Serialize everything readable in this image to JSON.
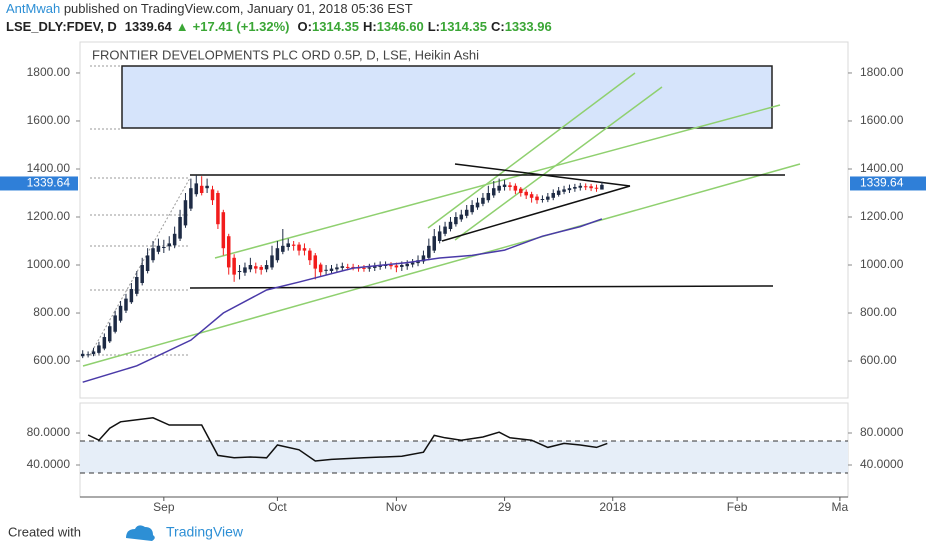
{
  "header": {
    "author": "AntMwah",
    "published": " published on TradingView.com, January 01, 2018 05:36 EST"
  },
  "chart_data": {
    "type": "candlestick",
    "symbol": "LSE_DLY:FDEV, D",
    "last": "1339.64",
    "change_arrow": "▲",
    "change": "+17.41 (+1.32%)",
    "ohlc_legend": [
      {
        "label": "O:",
        "value": "1314.35"
      },
      {
        "label": "H:",
        "value": "1346.60"
      },
      {
        "label": "L:",
        "value": "1314.35"
      },
      {
        "label": "C:",
        "value": "1333.96"
      }
    ],
    "title": "FRONTIER DEVELOPMENTS PLC ORD 0.5P, D, LSE, Heikin Ashi",
    "xlim": [
      -0.5,
      141.5
    ],
    "xticks": [
      {
        "value": 15,
        "label": "Sep"
      },
      {
        "value": 36,
        "label": "Oct"
      },
      {
        "value": 58,
        "label": "Nov"
      },
      {
        "value": 78,
        "label": "29"
      },
      {
        "value": 98,
        "label": "2018"
      },
      {
        "value": 121,
        "label": "Feb"
      },
      {
        "value": 140,
        "label": "Ma"
      }
    ],
    "ylim": [
      446,
      1929
    ],
    "yticks": [
      {
        "value": 600,
        "label": "600.00"
      },
      {
        "value": 800,
        "label": "800.00"
      },
      {
        "value": 1000,
        "label": "1000.00"
      },
      {
        "value": 1200,
        "label": "1200.00"
      },
      {
        "value": 1400,
        "label": "1400.00"
      },
      {
        "value": 1600,
        "label": "1600.00"
      },
      {
        "value": 1800,
        "label": "1800.00"
      }
    ],
    "grid": false,
    "up_color": "#1e2b45",
    "down_color": "#f21c1c",
    "open": [
      620,
      625,
      629,
      634,
      652,
      682,
      722,
      768,
      810,
      845,
      880,
      925,
      975,
      1020,
      1055,
      1075,
      1078,
      1082,
      1110,
      1165,
      1235,
      1295,
      1330,
      1320,
      1315,
      1300,
      1220,
      1120,
      1030,
      975,
      968,
      982,
      995,
      992,
      982,
      990,
      1020,
      1055,
      1075,
      1085,
      1085,
      1070,
      1060,
      1040,
      1002,
      978,
      975,
      982,
      988,
      992,
      992,
      990,
      988,
      985,
      988,
      992,
      998,
      1000,
      998,
      992,
      995,
      1002,
      1008,
      1015,
      1030,
      1060,
      1100,
      1130,
      1150,
      1170,
      1190,
      1205,
      1220,
      1240,
      1255,
      1270,
      1290,
      1310,
      1325,
      1332,
      1330,
      1318,
      1305,
      1295,
      1285,
      1275,
      1272,
      1280,
      1292,
      1305,
      1312,
      1318,
      1322,
      1328,
      1328,
      1322,
      1314.35
    ],
    "high": [
      645,
      640,
      655,
      680,
      715,
      760,
      810,
      850,
      880,
      925,
      975,
      1030,
      1070,
      1100,
      1110,
      1105,
      1120,
      1160,
      1230,
      1300,
      1360,
      1375,
      1370,
      1360,
      1330,
      1310,
      1230,
      1130,
      1045,
      1000,
      1010,
      1030,
      1010,
      1000,
      1020,
      1080,
      1100,
      1150,
      1110,
      1100,
      1095,
      1090,
      1070,
      1050,
      1010,
      1000,
      1000,
      1005,
      1010,
      1005,
      1005,
      1000,
      1000,
      1005,
      1010,
      1015,
      1015,
      1012,
      1010,
      1015,
      1020,
      1025,
      1040,
      1060,
      1110,
      1150,
      1165,
      1180,
      1200,
      1220,
      1230,
      1250,
      1270,
      1280,
      1300,
      1330,
      1350,
      1360,
      1355,
      1345,
      1340,
      1325,
      1315,
      1305,
      1295,
      1290,
      1300,
      1315,
      1325,
      1330,
      1335,
      1338,
      1342,
      1340,
      1338,
      1335,
      1346.6
    ],
    "low": [
      612,
      615,
      620,
      628,
      645,
      675,
      715,
      760,
      800,
      838,
      870,
      915,
      965,
      1010,
      1045,
      1050,
      1060,
      1070,
      1100,
      1155,
      1225,
      1285,
      1290,
      1300,
      1250,
      1150,
      1040,
      960,
      930,
      940,
      955,
      970,
      965,
      960,
      970,
      980,
      1010,
      1045,
      1060,
      1060,
      1040,
      1040,
      1000,
      940,
      950,
      960,
      965,
      970,
      975,
      978,
      978,
      972,
      972,
      972,
      975,
      980,
      985,
      982,
      970,
      975,
      980,
      990,
      995,
      1005,
      1020,
      1050,
      1090,
      1120,
      1140,
      1160,
      1180,
      1195,
      1210,
      1230,
      1245,
      1260,
      1280,
      1300,
      1310,
      1310,
      1295,
      1285,
      1275,
      1260,
      1255,
      1260,
      1262,
      1270,
      1285,
      1295,
      1300,
      1305,
      1310,
      1312,
      1308,
      1305,
      1314.35
    ],
    "close": [
      630,
      628,
      640,
      665,
      700,
      745,
      790,
      830,
      860,
      900,
      950,
      1000,
      1040,
      1070,
      1080,
      1075,
      1090,
      1130,
      1200,
      1270,
      1320,
      1340,
      1300,
      1330,
      1270,
      1170,
      1070,
      990,
      960,
      975,
      990,
      1000,
      985,
      980,
      1000,
      1040,
      1070,
      1080,
      1090,
      1080,
      1060,
      1060,
      1020,
      985,
      970,
      980,
      985,
      990,
      995,
      990,
      990,
      985,
      985,
      990,
      995,
      1000,
      1000,
      995,
      990,
      1000,
      1005,
      1010,
      1020,
      1040,
      1080,
      1120,
      1140,
      1160,
      1180,
      1200,
      1210,
      1230,
      1250,
      1260,
      1280,
      1300,
      1320,
      1330,
      1335,
      1325,
      1310,
      1300,
      1290,
      1280,
      1270,
      1275,
      1285,
      1300,
      1310,
      1315,
      1320,
      1325,
      1330,
      1325,
      1320,
      1318,
      1333.96
    ],
    "moving_average": {
      "color": "#4a3aa8",
      "x": [
        0,
        10,
        20,
        26,
        34,
        40,
        50,
        60,
        66,
        72,
        78,
        85,
        92,
        96
      ],
      "values": [
        512,
        580,
        687,
        800,
        896,
        929,
        987,
        1010,
        1029,
        1040,
        1062,
        1120,
        1160,
        1192
      ]
    },
    "price_tag": 1339.64,
    "tag_color": "#2f7fd8",
    "indicator": {
      "type": "line",
      "color": "#111111",
      "x": [
        1,
        3,
        5,
        7,
        13,
        14,
        16,
        22,
        25,
        28,
        31,
        34,
        36,
        40,
        43,
        46,
        52,
        59,
        63,
        65,
        67,
        70,
        74,
        77,
        79,
        83,
        86,
        89,
        92,
        95,
        97
      ],
      "values": [
        77.5,
        71,
        86,
        94,
        99,
        96,
        90,
        90,
        52,
        49,
        50,
        49,
        65,
        59,
        45,
        47,
        49,
        51,
        56,
        77,
        74,
        71,
        75,
        81,
        74,
        71,
        62,
        67,
        65,
        62,
        67
      ],
      "ylim": [
        0,
        117.5
      ],
      "yticks": [
        {
          "value": 80,
          "label": "80.0000"
        },
        {
          "value": 40,
          "label": "40.0000"
        }
      ],
      "bands": [
        70,
        30
      ],
      "band_color": "#e6eef8"
    }
  },
  "footer": {
    "text": "Created with",
    "brand": "TradingView"
  }
}
